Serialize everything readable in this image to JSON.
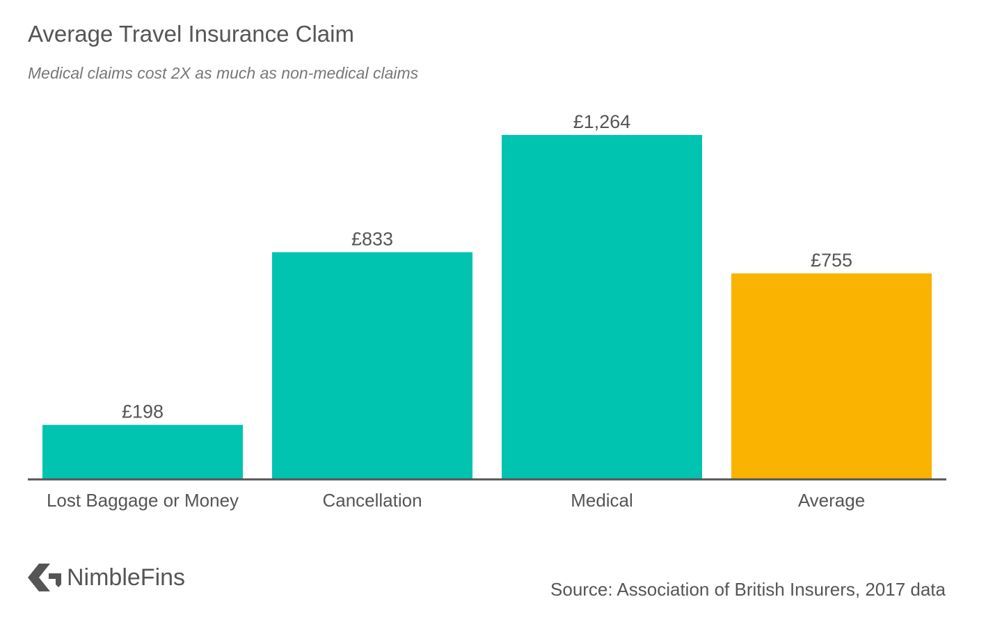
{
  "title": "Average Travel Insurance Claim",
  "subtitle": "Medical claims cost 2X as much as non-medical claims",
  "logo": {
    "icon": "nimblefins-arrow-icon",
    "text": "NimbleFins"
  },
  "source": "Source: Association of British Insurers, 2017 data",
  "colors": {
    "primary": "#00C4B0",
    "highlight": "#F9B300",
    "axis": "#555555",
    "text": "#555555"
  },
  "chart_data": {
    "type": "bar",
    "title": "Average Travel Insurance Claim",
    "subtitle": "Medical claims cost 2X as much as non-medical claims",
    "categories": [
      "Lost Baggage or Money",
      "Cancellation",
      "Medical",
      "Average"
    ],
    "values": [
      198,
      833,
      1264,
      755
    ],
    "value_labels": [
      "£198",
      "£833",
      "£1,264",
      "£755"
    ],
    "bar_colors": [
      "#00C4B0",
      "#00C4B0",
      "#00C4B0",
      "#F9B300"
    ],
    "ylim": [
      0,
      1264
    ],
    "grid": false,
    "legend": "none"
  }
}
